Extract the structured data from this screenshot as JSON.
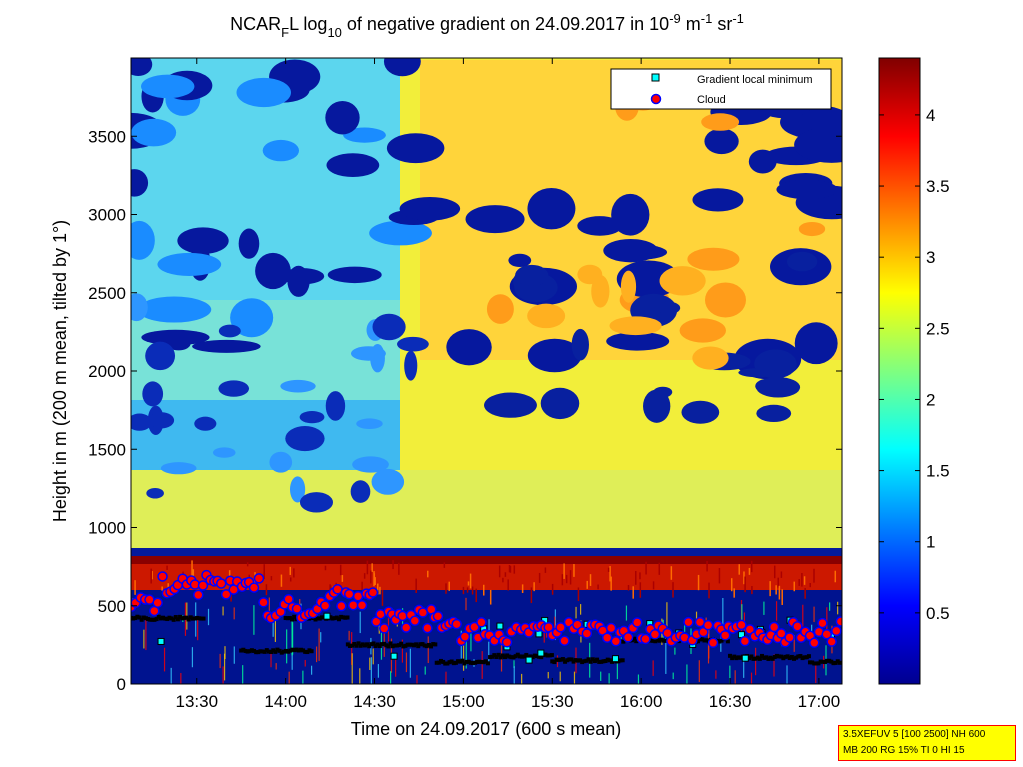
{
  "chart_data": {
    "type": "heatmap",
    "title_parts": {
      "a": "NCAR",
      "a_sub": "F",
      "b": "L log",
      "b_sub": "10",
      "c": " of negative gradient on 24.09.2017 in 10",
      "c_sup": "-9",
      "d": " m",
      "d_sup": "-1",
      "e": " sr",
      "e_sup": "-1"
    },
    "xlabel": "Time on 24.09.2017 (600 s mean)",
    "ylabel": "Height in m (200 m mean, tilted by 1°)",
    "x_ticks": [
      "13:30",
      "14:00",
      "14:30",
      "15:00",
      "15:30",
      "16:00",
      "16:30",
      "17:00"
    ],
    "x_tick_hours": [
      13.5,
      14.0,
      14.5,
      15.0,
      15.5,
      16.0,
      16.5,
      17.0
    ],
    "xlim_hours": [
      13.13,
      17.13
    ],
    "y_ticks": [
      0,
      500,
      1000,
      1500,
      2000,
      2500,
      3000,
      3500
    ],
    "ylim": [
      0,
      4000
    ],
    "colorbar": {
      "ticks": [
        "0.5",
        "1",
        "1.5",
        "2",
        "2.5",
        "3",
        "3.5",
        "4"
      ],
      "tick_values": [
        0.5,
        1,
        1.5,
        2,
        2.5,
        3,
        3.5,
        4
      ],
      "range": [
        0,
        4.4
      ],
      "colormap": "jet"
    },
    "legend": {
      "position": "top-right",
      "entries": [
        {
          "label": "Gradient local minimum",
          "marker": "square",
          "color": "#00ffff",
          "edge": "#000000"
        },
        {
          "label": "Cloud",
          "marker": "circle",
          "color": "#ff0000",
          "edge": "#0000ff"
        }
      ]
    },
    "grid": false
  },
  "info_box": {
    "line1": "3.5XEFUV 5 [100 2500] NH 600",
    "line2": "MB 200 RG 15% TI 0 HI 15"
  }
}
